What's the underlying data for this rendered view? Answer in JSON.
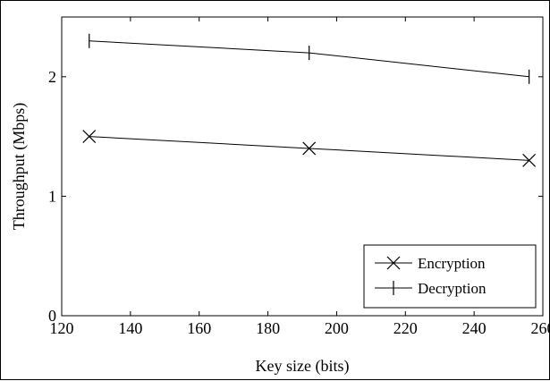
{
  "chart_data": {
    "type": "line",
    "title": "",
    "xlabel": "Key size (bits)",
    "ylabel": "Throughput (Mbps)",
    "xlim": [
      120,
      260
    ],
    "ylim": [
      0,
      2.5
    ],
    "xticks": [
      120,
      140,
      160,
      180,
      200,
      220,
      240,
      260
    ],
    "yticks": [
      0,
      1,
      2
    ],
    "grid": false,
    "legend_position": "bottom-right",
    "series": [
      {
        "name": "Encryption",
        "marker": "x",
        "color": "#000000",
        "x": [
          128,
          192,
          256
        ],
        "y": [
          1.5,
          1.4,
          1.3
        ]
      },
      {
        "name": "Decryption",
        "marker": "|",
        "color": "#000000",
        "x": [
          128,
          192,
          256
        ],
        "y": [
          2.3,
          2.2,
          2.0
        ]
      }
    ]
  }
}
